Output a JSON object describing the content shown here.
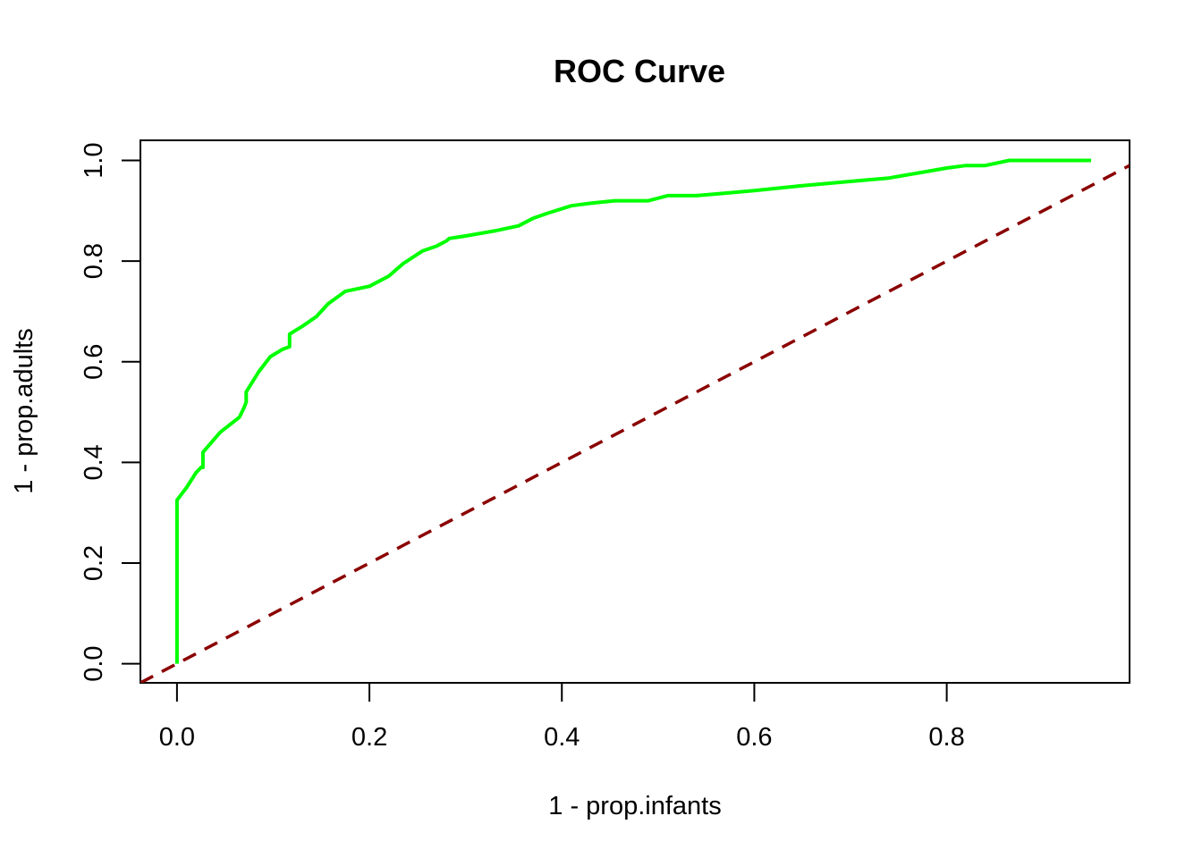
{
  "chart_data": {
    "type": "line",
    "title": "ROC Curve",
    "xlabel": "1 - prop.infants",
    "ylabel": "1 - prop.adults",
    "xlim": [
      -0.038,
      0.99
    ],
    "ylim": [
      -0.038,
      1.04
    ],
    "x_ticks": [
      "0.0",
      "0.2",
      "0.4",
      "0.6",
      "0.8"
    ],
    "y_ticks": [
      "0.0",
      "0.2",
      "0.4",
      "0.6",
      "0.8",
      "1.0"
    ],
    "grid": false,
    "legend": "none",
    "series": [
      {
        "style": "solid",
        "color": "#00ff00",
        "x": [
          0.0,
          0.0,
          0.01,
          0.02,
          0.025,
          0.027,
          0.027,
          0.045,
          0.065,
          0.07,
          0.072,
          0.072,
          0.085,
          0.097,
          0.11,
          0.117,
          0.117,
          0.13,
          0.145,
          0.157,
          0.175,
          0.2,
          0.22,
          0.235,
          0.255,
          0.27,
          0.28,
          0.283,
          0.3,
          0.33,
          0.355,
          0.37,
          0.385,
          0.41,
          0.43,
          0.455,
          0.49,
          0.51,
          0.54,
          0.57,
          0.6,
          0.625,
          0.65,
          0.68,
          0.71,
          0.74,
          0.77,
          0.8,
          0.82,
          0.84,
          0.865,
          0.9,
          0.93,
          0.95
        ],
        "y": [
          0.0,
          0.325,
          0.35,
          0.38,
          0.39,
          0.39,
          0.42,
          0.46,
          0.49,
          0.51,
          0.52,
          0.54,
          0.58,
          0.61,
          0.625,
          0.63,
          0.655,
          0.67,
          0.69,
          0.715,
          0.74,
          0.75,
          0.77,
          0.795,
          0.82,
          0.83,
          0.84,
          0.845,
          0.85,
          0.86,
          0.87,
          0.885,
          0.895,
          0.91,
          0.915,
          0.92,
          0.92,
          0.93,
          0.93,
          0.935,
          0.94,
          0.945,
          0.95,
          0.955,
          0.96,
          0.965,
          0.975,
          0.985,
          0.99,
          0.99,
          1.0,
          1.0,
          1.0,
          1.0
        ]
      },
      {
        "style": "dashed",
        "color": "#8b0000",
        "x": [
          -0.038,
          0.99
        ],
        "y": [
          -0.038,
          0.99
        ]
      }
    ]
  }
}
